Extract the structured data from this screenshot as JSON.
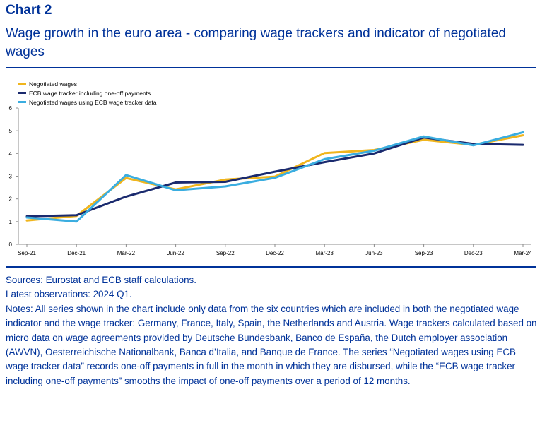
{
  "header": {
    "chart_number": "Chart 2",
    "title": "Wage growth in the euro area - comparing wage trackers and indicator of negotiated wages"
  },
  "colors": {
    "negotiated_wages": "#F0B51D",
    "ecb_wage_tracker": "#1A2A6E",
    "negotiated_ecb_data": "#3AADE0",
    "text_blue": "#003299",
    "axis": "#8C8C8C"
  },
  "chart_data": {
    "type": "line",
    "title": "Wage growth in the euro area - comparing wage trackers and indicator of negotiated wages",
    "xlabel": "",
    "ylabel": "",
    "ylim": [
      0,
      6
    ],
    "yticks": [
      0,
      1,
      2,
      3,
      4,
      5,
      6
    ],
    "x": [
      "Sep-21",
      "Dec-21",
      "Mar-22",
      "Jun-22",
      "Sep-22",
      "Dec-22",
      "Mar-23",
      "Jun-23",
      "Sep-23",
      "Dec-23",
      "Mar-24"
    ],
    "xtick_labels": [
      "Sep-21",
      "Dec-21",
      "Mar-22",
      "Jun-22",
      "Sep-22",
      "Dec-22",
      "Mar-23",
      "Jun-23",
      "Sep-23",
      "Dec-23",
      "Mar-24"
    ],
    "grid": false,
    "legend_position": "top-left",
    "series": [
      {
        "name": "Negotiated wages",
        "color": "#F0B51D",
        "values": [
          1.05,
          1.25,
          2.92,
          2.42,
          2.85,
          2.98,
          4.02,
          4.15,
          4.6,
          4.38,
          4.8
        ]
      },
      {
        "name": "ECB wage tracker including one-off payments",
        "color": "#1A2A6E",
        "values": [
          1.23,
          1.28,
          2.1,
          2.72,
          2.75,
          3.2,
          3.62,
          4.0,
          4.7,
          4.42,
          4.38
        ]
      },
      {
        "name": "Negotiated wages using ECB wage tracker data",
        "color": "#3AADE0",
        "values": [
          1.18,
          1.0,
          3.05,
          2.38,
          2.55,
          2.93,
          3.75,
          4.12,
          4.75,
          4.36,
          4.93
        ]
      }
    ]
  },
  "notes": {
    "sources": "Sources: Eurostat and ECB staff calculations.",
    "latest": "Latest observations: 2024 Q1.",
    "notes_text": "Notes: All series shown in the chart include only data from the six countries which are included in both the negotiated wage indicator and the wage tracker: Germany, France, Italy, Spain, the Netherlands and Austria. Wage trackers calculated based on micro data on wage agreements provided by Deutsche Bundesbank, Banco de España, the Dutch employer association (AWVN), Oesterreichische Nationalbank, Banca d’Italia, and Banque de France. The series “Negotiated wages using ECB wage tracker data” records one-off payments in full in the month in which they are disbursed, while the “ECB wage tracker including one-off payments” smooths the impact of one-off payments over a period of 12 months."
  }
}
